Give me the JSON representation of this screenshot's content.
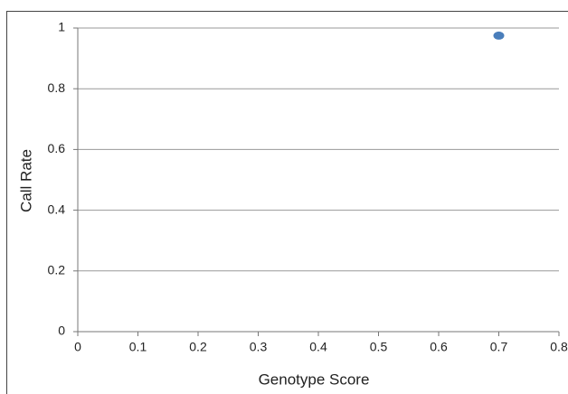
{
  "chart_data": {
    "type": "scatter",
    "x_label": "Genotype Score",
    "y_label": "Call Rate",
    "series": [
      {
        "color": "#4a7ebb",
        "x": [
          0.7
        ],
        "values": [
          0.975
        ]
      }
    ],
    "xlim": [
      0,
      0.8
    ],
    "xticks": [
      0,
      0.1,
      0.2,
      0.3,
      0.4,
      0.5,
      0.6,
      0.7,
      0.8
    ],
    "ylim": [
      0,
      1
    ],
    "yticks": [
      0,
      0.2,
      0.4,
      0.6,
      0.8,
      1
    ],
    "grid": true
  }
}
